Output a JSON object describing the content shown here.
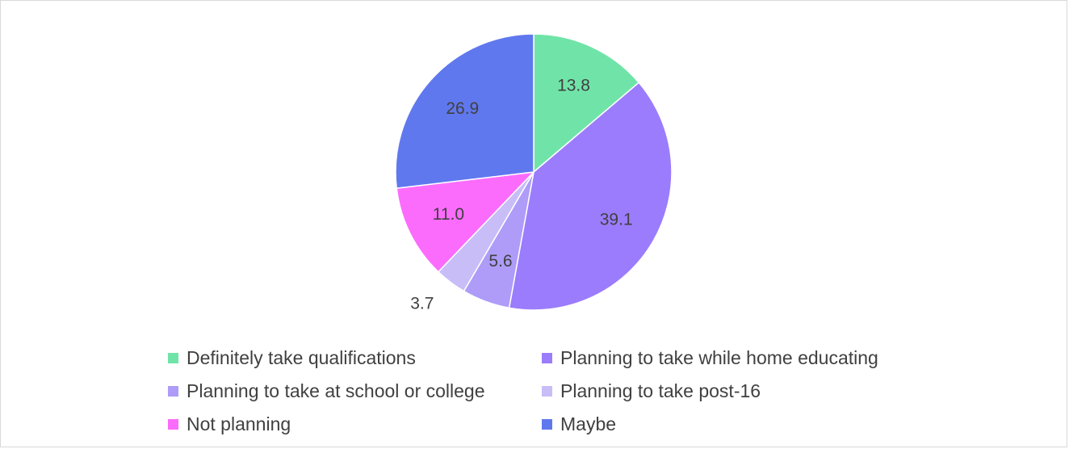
{
  "chart_data": {
    "type": "pie",
    "title": "",
    "slices": [
      {
        "label": "Definitely take qualifications",
        "value": 13.8,
        "value_label": "13.8",
        "color": "#70E4A8"
      },
      {
        "label": "Planning to take while home educating",
        "value": 39.1,
        "value_label": "39.1",
        "color": "#9B7CFC"
      },
      {
        "label": "Planning to take at school or college",
        "value": 5.6,
        "value_label": "5.6",
        "color": "#AE9CF8"
      },
      {
        "label": "Planning to take post-16",
        "value": 3.7,
        "value_label": "3.7",
        "color": "#C9BDF8"
      },
      {
        "label": "Not planning",
        "value": 11.0,
        "value_label": "11.0",
        "color": "#FC6CFC"
      },
      {
        "label": "Maybe",
        "value": 26.9,
        "value_label": "26.9",
        "color": "#6078EE"
      }
    ],
    "legend_position": "bottom"
  }
}
